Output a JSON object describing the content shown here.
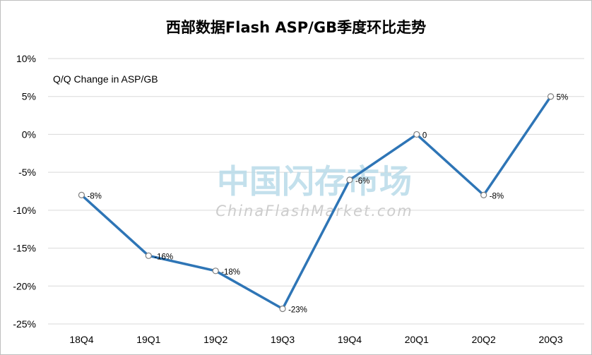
{
  "chart_data": {
    "type": "line",
    "title": "西部数据Flash ASP/GB季度环比走势",
    "ylabel": "Q/Q Change in ASP/GB",
    "categories": [
      "18Q4",
      "19Q1",
      "19Q2",
      "19Q3",
      "19Q4",
      "20Q1",
      "20Q2",
      "20Q3"
    ],
    "values": [
      -8,
      -16,
      -18,
      -23,
      -6,
      0,
      -8,
      5
    ],
    "data_labels": [
      "-8%",
      "-16%",
      "-18%",
      "-23%",
      "-6%",
      "0",
      "-8%",
      "5%"
    ],
    "ylim": [
      -25,
      10
    ],
    "yticks": [
      10,
      5,
      0,
      -5,
      -10,
      -15,
      -20,
      -25
    ],
    "ytick_labels": [
      "10%",
      "5%",
      "0%",
      "-5%",
      "-10%",
      "-15%",
      "-20%",
      "-25%"
    ],
    "grid": true,
    "line_color": "#2e75b6",
    "gridline_color": "#d9d9d9"
  },
  "watermark": {
    "chinese": "中国闪存市场",
    "english": "ChinaFlashMarket.com"
  }
}
